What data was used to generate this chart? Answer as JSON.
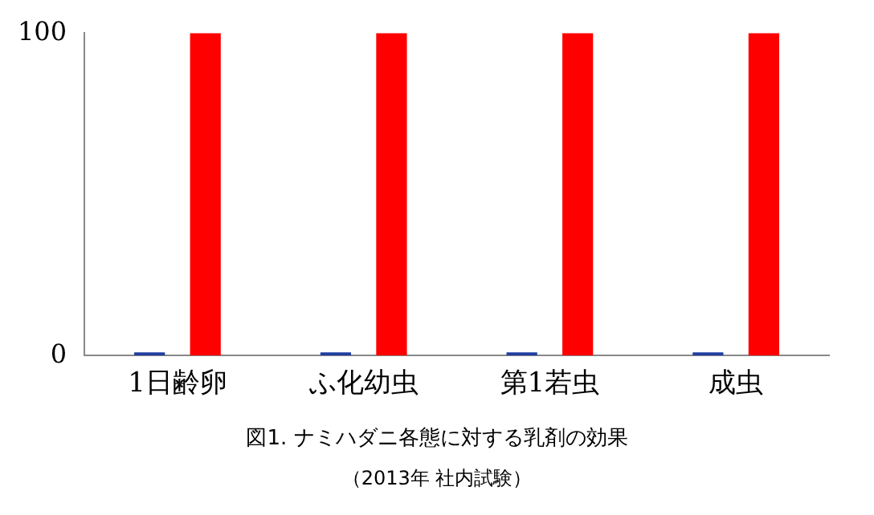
{
  "chart_data": {
    "type": "bar",
    "title": "図1. ナミハダニ各態に対する乳剤の効果",
    "annotations": [
      "（2013年 社内試験）"
    ],
    "categories": [
      "1日齢卵",
      "ふ化幼虫",
      "第1若虫",
      "成虫"
    ],
    "series": [
      {
        "color": "#1f3fa0",
        "values": [
          1,
          1,
          1,
          1
        ]
      },
      {
        "color": "#ff0000",
        "values": [
          100,
          100,
          100,
          100
        ]
      }
    ],
    "ylim": [
      0,
      100
    ],
    "yticks": [
      0,
      100
    ],
    "grid": false,
    "legend": false
  }
}
